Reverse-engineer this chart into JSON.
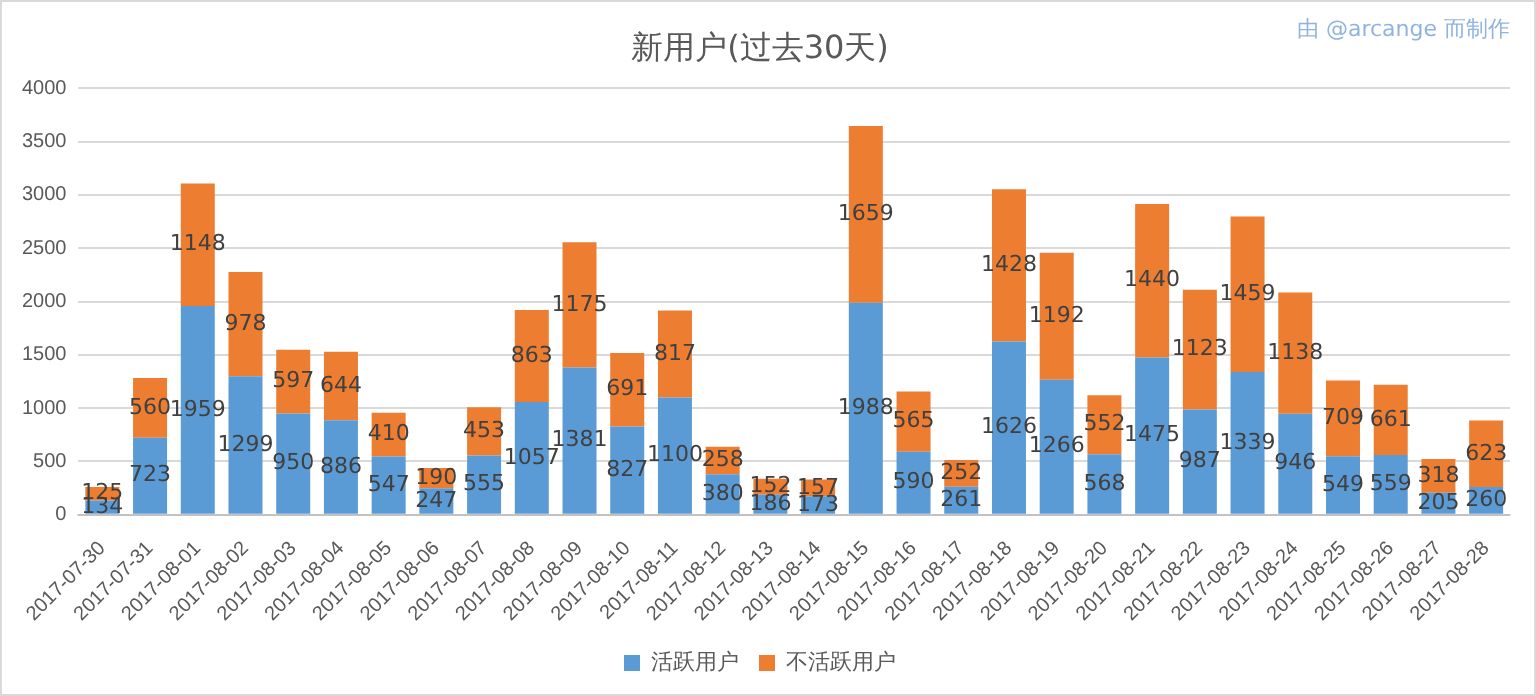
{
  "chart_data": {
    "type": "bar",
    "title": "新用户(过去30天)",
    "stacked": true,
    "categories": [
      "2017-07-30",
      "2017-07-31",
      "2017-08-01",
      "2017-08-02",
      "2017-08-03",
      "2017-08-04",
      "2017-08-05",
      "2017-08-06",
      "2017-08-07",
      "2017-08-08",
      "2017-08-09",
      "2017-08-10",
      "2017-08-11",
      "2017-08-12",
      "2017-08-13",
      "2017-08-14",
      "2017-08-15",
      "2017-08-16",
      "2017-08-17",
      "2017-08-18",
      "2017-08-19",
      "2017-08-20",
      "2017-08-21",
      "2017-08-22",
      "2017-08-23",
      "2017-08-24",
      "2017-08-25",
      "2017-08-26",
      "2017-08-27",
      "2017-08-28"
    ],
    "series": [
      {
        "name": "活跃用户",
        "color": "#5b9bd5",
        "values": [
          134,
          723,
          1959,
          1299,
          950,
          886,
          547,
          247,
          555,
          1057,
          1381,
          827,
          1100,
          380,
          186,
          173,
          1988,
          590,
          261,
          1626,
          1266,
          568,
          1475,
          987,
          1339,
          946,
          549,
          559,
          205,
          260
        ]
      },
      {
        "name": "不活跃用户",
        "color": "#ed7d31",
        "values": [
          125,
          560,
          1148,
          978,
          597,
          644,
          410,
          190,
          453,
          863,
          1175,
          691,
          817,
          258,
          152,
          157,
          1659,
          565,
          252,
          1428,
          1192,
          552,
          1440,
          1123,
          1459,
          1138,
          709,
          661,
          318,
          623
        ]
      }
    ],
    "ylim": [
      0,
      4000
    ],
    "yticks": [
      0,
      500,
      1000,
      1500,
      2000,
      2500,
      3000,
      3500,
      4000
    ],
    "grid": "y",
    "legend": "bottom",
    "data_labels": true,
    "annotations": [
      "由 @arcange 而制作"
    ]
  }
}
